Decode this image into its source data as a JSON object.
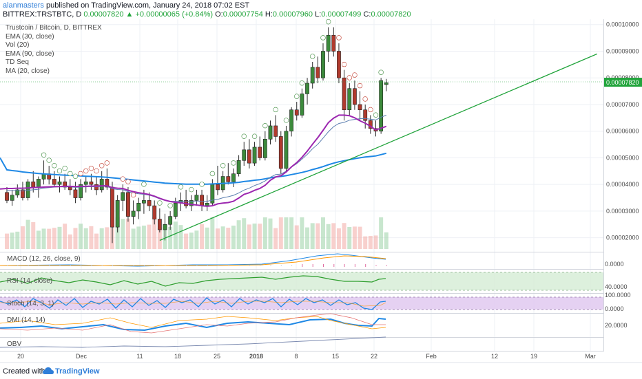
{
  "header": {
    "author": "alanmasters",
    "published_text": "published on TradingView.com, January 24, 2018 07:02 EST",
    "symbol": "BITTREX:TRSTBTC, D",
    "price": "0.00007820",
    "change": "+0.00000065 (+0.84%)",
    "o_label": "O:",
    "o_value": "0.00007754",
    "h_label": "H:",
    "h_value": "0.00007960",
    "l_label": "L:",
    "l_value": "0.00007499",
    "c_label": "C:",
    "c_value": "0.00007820"
  },
  "legend": [
    "Trustcoin / Bitcoin, D, BITTREX",
    "EMA (30, close)",
    "Vol (20)",
    "EMA (90, close)",
    "TD Seq",
    "MA (20, close)"
  ],
  "panes": {
    "macd": {
      "title": "MACD (12, 26, close, 9)",
      "axis": "0.0000"
    },
    "rsi": {
      "title": "RSI (14, close)",
      "axis": "40.0000"
    },
    "stoch": {
      "title": "Stoch (14, 3, 1)",
      "axis_top": "100.0000",
      "axis_bot": "0.0000"
    },
    "dmi": {
      "title": "DMI (14, 14)",
      "axis": "20.0000"
    },
    "obv": {
      "title": "OBV"
    }
  },
  "price_axis": [
    "0.00010000",
    "0.00009000",
    "0.00008000",
    "0.00007000",
    "0.00006000",
    "0.00005000",
    "0.00004000",
    "0.00003000",
    "0.00002000"
  ],
  "last_price_tag": "0.00007820",
  "time_axis": [
    "20",
    "Dec",
    "11",
    "18",
    "25",
    "2018",
    "8",
    "15",
    "22",
    "Feb",
    "12",
    "19",
    "Mar"
  ],
  "colors": {
    "up": "#3c8a3c",
    "down": "#c0392b",
    "ema30": "#1e88e5",
    "ema90": "#1e88e5",
    "ma20": "#9c27b0",
    "trendline": "#22a43c",
    "accent": "#2f7ed8"
  },
  "footer": {
    "created_with": "Created with",
    "brand": "TradingView"
  },
  "chart_data": {
    "type": "candlestick",
    "title": "Trustcoin / Bitcoin, D, BITTREX",
    "ylim": [
      1.5e-05,
      0.000102
    ],
    "x_start": "2017-11-15",
    "candles": [
      [
        3.7e-05,
        3.9e-05,
        3.3e-05,
        3.4e-05
      ],
      [
        3.4e-05,
        3.8e-05,
        3.2e-05,
        3.6e-05
      ],
      [
        3.6e-05,
        4e-05,
        3.5e-05,
        3.8e-05
      ],
      [
        3.8e-05,
        4.1e-05,
        3.4e-05,
        3.5e-05
      ],
      [
        3.5e-05,
        4.2e-05,
        3.4e-05,
        4.1e-05
      ],
      [
        4.1e-05,
        4.5e-05,
        3.7e-05,
        3.9e-05
      ],
      [
        3.9e-05,
        4.3e-05,
        3.5e-05,
        4.2e-05
      ],
      [
        4.2e-05,
        4.9e-05,
        4e-05,
        4.4e-05
      ],
      [
        4.4e-05,
        4.7e-05,
        4e-05,
        4.2e-05
      ],
      [
        4.2e-05,
        4.5e-05,
        3.9e-05,
        4e-05
      ],
      [
        4e-05,
        4.3e-05,
        3.7e-05,
        4.1e-05
      ],
      [
        4.1e-05,
        4.4e-05,
        3.8e-05,
        3.9e-05
      ],
      [
        3.9e-05,
        4.2e-05,
        3.6e-05,
        3.8e-05
      ],
      [
        3.8e-05,
        4.1e-05,
        3.3e-05,
        3.5e-05
      ],
      [
        3.5e-05,
        4.2e-05,
        3.4e-05,
        4e-05
      ],
      [
        4e-05,
        4.3e-05,
        3.7e-05,
        4.1e-05
      ],
      [
        4.1e-05,
        4.4e-05,
        3.8e-05,
        4e-05
      ],
      [
        4e-05,
        4.3e-05,
        3.6e-05,
        3.8e-05
      ],
      [
        3.8e-05,
        4.5e-05,
        3.7e-05,
        4.2e-05
      ],
      [
        4.2e-05,
        4.6e-05,
        3.8e-05,
        3.9e-05
      ],
      [
        3.9e-05,
        4.1e-05,
        1.8e-05,
        2.4e-05
      ],
      [
        2.4e-05,
        3.6e-05,
        2.2e-05,
        3.4e-05
      ],
      [
        3.4e-05,
        4e-05,
        3e-05,
        3.7e-05
      ],
      [
        3.7e-05,
        3.9e-05,
        2.6e-05,
        2.8e-05
      ],
      [
        2.8e-05,
        3.4e-05,
        2.5e-05,
        3e-05
      ],
      [
        3e-05,
        3.5e-05,
        2.7e-05,
        3.3e-05
      ],
      [
        3.3e-05,
        3.8e-05,
        2.9e-05,
        3.4e-05
      ],
      [
        3.4e-05,
        3.7e-05,
        3e-05,
        3.2e-05
      ],
      [
        3.2e-05,
        3.4e-05,
        2.5e-05,
        2.7e-05
      ],
      [
        2.7e-05,
        3.1e-05,
        2.2e-05,
        2.3e-05
      ],
      [
        2.3e-05,
        2.9e-05,
        1.9e-05,
        2.5e-05
      ],
      [
        2.5e-05,
        3e-05,
        2.3e-05,
        2.8e-05
      ],
      [
        2.8e-05,
        3.5e-05,
        2.7e-05,
        3.3e-05
      ],
      [
        3.3e-05,
        3.7e-05,
        3e-05,
        3.4e-05
      ],
      [
        3.4e-05,
        3.8e-05,
        3.1e-05,
        3.2e-05
      ],
      [
        3.2e-05,
        3.6e-05,
        3e-05,
        3.4e-05
      ],
      [
        3.4e-05,
        3.8e-05,
        3.2e-05,
        3.6e-05
      ],
      [
        3.6e-05,
        3.8e-05,
        3e-05,
        3.2e-05
      ],
      [
        3.2e-05,
        3.6e-05,
        3e-05,
        3.3e-05
      ],
      [
        3.3e-05,
        4.2e-05,
        3.2e-05,
        4e-05
      ],
      [
        4e-05,
        4.7e-05,
        3.6e-05,
        3.8e-05
      ],
      [
        3.8e-05,
        4.5e-05,
        3.7e-05,
        4.3e-05
      ],
      [
        4.3e-05,
        4.8e-05,
        4e-05,
        4.1e-05
      ],
      [
        4.1e-05,
        4.6e-05,
        3.9e-05,
        4.4e-05
      ],
      [
        4.4e-05,
        5.1e-05,
        4.3e-05,
        4.9e-05
      ],
      [
        4.9e-05,
        5.6e-05,
        4.7e-05,
        5.3e-05
      ],
      [
        5.3e-05,
        5.7e-05,
        4.6e-05,
        4.8e-05
      ],
      [
        4.8e-05,
        5.6e-05,
        4.7e-05,
        5.4e-05
      ],
      [
        5.4e-05,
        5.8e-05,
        4.9e-05,
        5e-05
      ],
      [
        5e-05,
        6e-05,
        4.9e-05,
        5.7e-05
      ],
      [
        5.7e-05,
        6.4e-05,
        5.5e-05,
        6.2e-05
      ],
      [
        6.2e-05,
        6.6e-05,
        5.6e-05,
        5.8e-05
      ],
      [
        5.8e-05,
        6e-05,
        4.4e-05,
        4.6e-05
      ],
      [
        4.6e-05,
        6.2e-05,
        4.5e-05,
        6e-05
      ],
      [
        6e-05,
        6.9e-05,
        5.8e-05,
        6.8e-05
      ],
      [
        6.8e-05,
        7.1e-05,
        6.4e-05,
        6.6e-05
      ],
      [
        6.6e-05,
        7.6e-05,
        6.5e-05,
        7.4e-05
      ],
      [
        7.4e-05,
        8e-05,
        7e-05,
        7.8e-05
      ],
      [
        7.8e-05,
        8.6e-05,
        7.6e-05,
        8.4e-05
      ],
      [
        8.4e-05,
        8.8e-05,
        7.8e-05,
        8e-05
      ],
      [
        8e-05,
        9.3e-05,
        7.9e-05,
        9e-05
      ],
      [
        9e-05,
        9.9e-05,
        8.6e-05,
        9.6e-05
      ],
      [
        9.6e-05,
        9.9e-05,
        8.8e-05,
        9e-05
      ],
      [
        9e-05,
        9.3e-05,
        7.8e-05,
        8e-05
      ],
      [
        8e-05,
        8.3e-05,
        6.4e-05,
        6.8e-05
      ],
      [
        6.8e-05,
        7.8e-05,
        6.6e-05,
        7.6e-05
      ],
      [
        7.6e-05,
        7.9e-05,
        6.8e-05,
        7e-05
      ],
      [
        7e-05,
        7.5e-05,
        6.4e-05,
        6.8e-05
      ],
      [
        6.8e-05,
        7e-05,
        6.1e-05,
        6.4e-05
      ],
      [
        6.4e-05,
        6.6e-05,
        5.9e-05,
        6.1e-05
      ],
      [
        6.1e-05,
        6.4e-05,
        5.8e-05,
        6e-05
      ],
      [
        6e-05,
        8e-05,
        5.9e-05,
        7.9e-05
      ],
      [
        7.75e-05,
        7.96e-05,
        7.5e-05,
        7.82e-05
      ]
    ],
    "ema30": [
      3.78e-05,
      3.77e-05,
      3.77e-05,
      3.75e-05,
      3.78e-05,
      3.8e-05,
      3.82e-05,
      3.86e-05,
      3.88e-05,
      3.9e-05,
      3.91e-05,
      3.91e-05,
      3.91e-05,
      3.89e-05,
      3.9e-05,
      3.91e-05,
      3.92e-05,
      3.91e-05,
      3.93e-05,
      3.93e-05,
      3.84e-05,
      3.81e-05,
      3.8e-05,
      3.73e-05,
      3.68e-05,
      3.65e-05,
      3.63e-05,
      3.6e-05,
      3.54e-05,
      3.46e-05,
      3.4e-05,
      3.37e-05,
      3.37e-05,
      3.37e-05,
      3.36e-05,
      3.37e-05,
      3.38e-05,
      3.37e-05,
      3.37e-05,
      3.41e-05,
      3.44e-05,
      3.5e-05,
      3.54e-05,
      3.59e-05,
      3.68e-05,
      3.79e-05,
      3.86e-05,
      3.96e-05,
      4.03e-05,
      4.13e-05,
      4.27e-05,
      4.37e-05,
      4.39e-05,
      4.5e-05,
      4.65e-05,
      4.78e-05,
      4.95e-05,
      5.13e-05,
      5.34e-05,
      5.51e-05,
      5.74e-05,
      5.98e-05,
      6.17e-05,
      6.29e-05,
      6.33e-05,
      6.41e-05,
      6.44e-05,
      6.47e-05,
      6.47e-05,
      6.45e-05,
      6.42e-05,
      6.52e-05,
      6.6e-05
    ],
    "ema90": [
      4.55e-05,
      4.52e-05,
      4.5e-05,
      4.47e-05,
      4.45e-05,
      4.43e-05,
      4.41e-05,
      4.4e-05,
      4.38e-05,
      4.37e-05,
      4.36e-05,
      4.35e-05,
      4.34e-05,
      4.33e-05,
      4.32e-05,
      4.31e-05,
      4.3e-05,
      4.29e-05,
      4.28e-05,
      4.27e-05,
      4.25e-05,
      4.23e-05,
      4.21e-05,
      4.19e-05,
      4.17e-05,
      4.15e-05,
      4.13e-05,
      4.11e-05,
      4.09e-05,
      4.07e-05,
      4.05e-05,
      4.04e-05,
      4.03e-05,
      4.02e-05,
      4.01e-05,
      4.01e-05,
      4.01e-05,
      4.01e-05,
      4.01e-05,
      4.02e-05,
      4.03e-05,
      4.04e-05,
      4.05e-05,
      4.06e-05,
      4.08e-05,
      4.11e-05,
      4.13e-05,
      4.16e-05,
      4.18e-05,
      4.21e-05,
      4.25e-05,
      4.28e-05,
      4.3e-05,
      4.33e-05,
      4.37e-05,
      4.41e-05,
      4.45e-05,
      4.5e-05,
      4.56e-05,
      4.61e-05,
      4.67e-05,
      4.74e-05,
      4.8e-05,
      4.85e-05,
      4.89e-05,
      4.93e-05,
      4.97e-05,
      5e-05,
      5.03e-05,
      5.05e-05,
      5.07e-05,
      5.12e-05,
      5.17e-05
    ],
    "ma20": [
      3.85e-05,
      3.85e-05,
      3.86e-05,
      3.86e-05,
      3.87e-05,
      3.88e-05,
      3.89e-05,
      3.9e-05,
      3.91e-05,
      3.92e-05,
      3.92e-05,
      3.93e-05,
      3.93e-05,
      3.92e-05,
      3.93e-05,
      3.93e-05,
      3.94e-05,
      3.94e-05,
      3.95e-05,
      3.95e-05,
      3.88e-05,
      3.86e-05,
      3.85e-05,
      3.78e-05,
      3.73e-05,
      3.69e-05,
      3.66e-05,
      3.62e-05,
      3.56e-05,
      3.48e-05,
      3.41e-05,
      3.36e-05,
      3.33e-05,
      3.31e-05,
      3.28e-05,
      3.25e-05,
      3.23e-05,
      3.2e-05,
      3.18e-05,
      3.2e-05,
      3.27e-05,
      3.3e-05,
      3.32e-05,
      3.37e-05,
      3.49e-05,
      3.63e-05,
      3.69e-05,
      3.78e-05,
      3.85e-05,
      3.97e-05,
      4.16e-05,
      4.28e-05,
      4.33e-05,
      4.47e-05,
      4.66e-05,
      4.82e-05,
      5.02e-05,
      5.25e-05,
      5.51e-05,
      5.76e-05,
      6.03e-05,
      6.32e-05,
      6.49e-05,
      6.6e-05,
      6.6e-05,
      6.58e-05,
      6.5e-05,
      6.39e-05,
      6.3e-05,
      6.18e-05,
      6.05e-05,
      6.11e-05,
      6.18e-05
    ],
    "trendline": {
      "from": [
        29,
        1.9e-05
      ],
      "to": [
        112,
        8.9e-05
      ]
    },
    "xlabel": "",
    "ylabel": ""
  }
}
